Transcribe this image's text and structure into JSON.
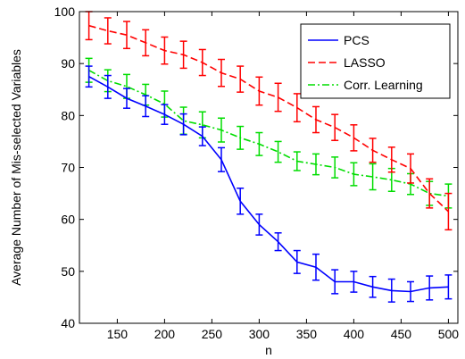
{
  "chart_data": {
    "type": "line",
    "title": "",
    "xlabel": "n",
    "ylabel": "Average Number of Mis-selected Variables",
    "xlim": [
      110,
      510
    ],
    "ylim": [
      40,
      100
    ],
    "xticks": [
      150,
      200,
      250,
      300,
      350,
      400,
      450,
      500
    ],
    "yticks": [
      40,
      50,
      60,
      70,
      80,
      90,
      100
    ],
    "xtick_labels": [
      "150",
      "200",
      "250",
      "300",
      "350",
      "400",
      "450",
      "500"
    ],
    "ytick_labels": [
      "40",
      "50",
      "60",
      "70",
      "80",
      "90",
      "100"
    ],
    "grid": false,
    "legend_position": "top-right",
    "x": [
      120,
      140,
      160,
      180,
      200,
      220,
      240,
      260,
      280,
      300,
      320,
      340,
      360,
      380,
      400,
      420,
      440,
      460,
      480,
      500
    ],
    "series": [
      {
        "name": "PCS",
        "color": "#0000ff",
        "line_style": "solid",
        "values": [
          87.5,
          85.5,
          83.3,
          81.8,
          80.2,
          78.3,
          76.0,
          71.5,
          63.5,
          59.0,
          55.7,
          51.8,
          50.8,
          48.0,
          48.0,
          47.0,
          46.3,
          46.1,
          46.8,
          47.0
        ],
        "errors": [
          2.0,
          2.2,
          1.9,
          2.0,
          1.9,
          2.0,
          1.8,
          2.3,
          2.5,
          2.0,
          1.7,
          2.2,
          2.5,
          2.3,
          2.0,
          2.0,
          2.2,
          1.9,
          2.3,
          2.3
        ]
      },
      {
        "name": "LASSO",
        "color": "#ff0000",
        "line_style": "dashed",
        "values": [
          97.3,
          96.3,
          95.5,
          94.0,
          92.5,
          91.7,
          90.2,
          88.2,
          87.0,
          84.7,
          83.5,
          81.5,
          79.2,
          77.7,
          75.7,
          73.3,
          71.5,
          69.8,
          65.0,
          61.5
        ],
        "errors": [
          2.7,
          2.5,
          2.6,
          2.5,
          2.6,
          2.6,
          2.5,
          2.6,
          2.5,
          2.7,
          2.7,
          2.7,
          2.5,
          2.5,
          2.5,
          2.3,
          2.4,
          2.8,
          2.8,
          3.5
        ]
      },
      {
        "name": "Corr. Learning",
        "color": "#00dd00",
        "line_style": "dash-dot",
        "values": [
          88.7,
          86.7,
          85.6,
          84.0,
          82.2,
          79.0,
          78.2,
          77.2,
          75.7,
          74.5,
          73.0,
          71.2,
          70.6,
          70.0,
          68.7,
          68.2,
          67.6,
          66.8,
          65.0,
          64.5
        ],
        "errors": [
          2.3,
          2.1,
          2.3,
          2.0,
          2.5,
          2.6,
          2.5,
          2.3,
          2.2,
          2.2,
          2.0,
          1.8,
          2.0,
          2.0,
          2.2,
          2.5,
          2.2,
          2.0,
          2.3,
          2.3
        ]
      }
    ]
  }
}
